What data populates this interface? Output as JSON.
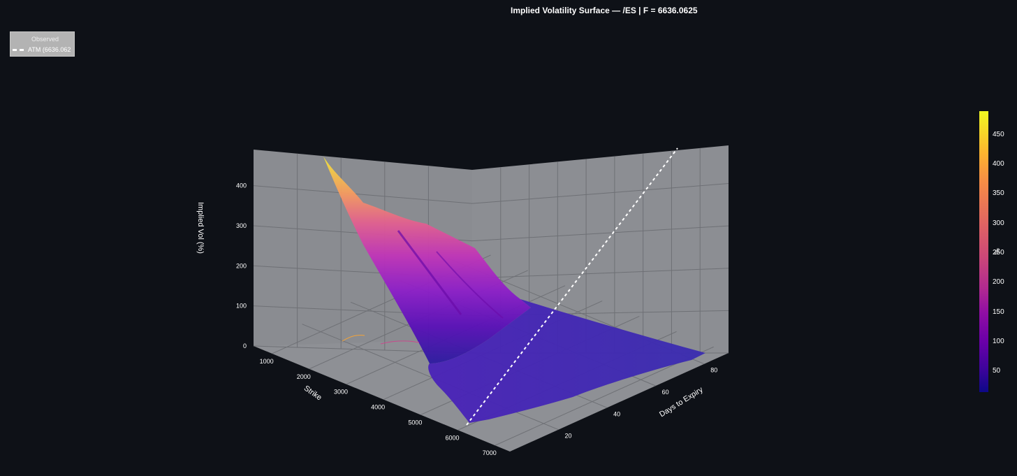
{
  "title": "Implied Volatility Surface — /ES  |  F = 6636.0625",
  "legend": {
    "observed": "Observed",
    "atm": "ATM (6636.062"
  },
  "colorbar": {
    "title": "%",
    "ticks": [
      "450",
      "400",
      "350",
      "300",
      "250",
      "200",
      "150",
      "100",
      "50"
    ],
    "colorscale": "plasma"
  },
  "chart_data": {
    "type": "surface",
    "x_axis": {
      "label": "Strike",
      "ticks": [
        "1000",
        "2000",
        "3000",
        "4000",
        "5000",
        "6000",
        "7000"
      ],
      "range": [
        500,
        7400
      ]
    },
    "y_axis": {
      "label": "Days to Expiry",
      "ticks": [
        "20",
        "40",
        "60",
        "80"
      ],
      "range": [
        0,
        90
      ]
    },
    "z_axis": {
      "label": "Implied Vol (%)",
      "ticks": [
        "0",
        "100",
        "200",
        "300",
        "400"
      ],
      "range": [
        0,
        490
      ]
    },
    "atm_strike": 6636.0625,
    "series": [
      {
        "name": "Observed",
        "type": "surface"
      },
      {
        "name": "ATM (6636.062",
        "type": "line",
        "style": "dashed",
        "color": "#ffffff"
      }
    ],
    "colorscale": [
      "#0d0887",
      "#6a00a8",
      "#b12a90",
      "#e16462",
      "#fca636",
      "#f0f921"
    ],
    "grid": true
  }
}
